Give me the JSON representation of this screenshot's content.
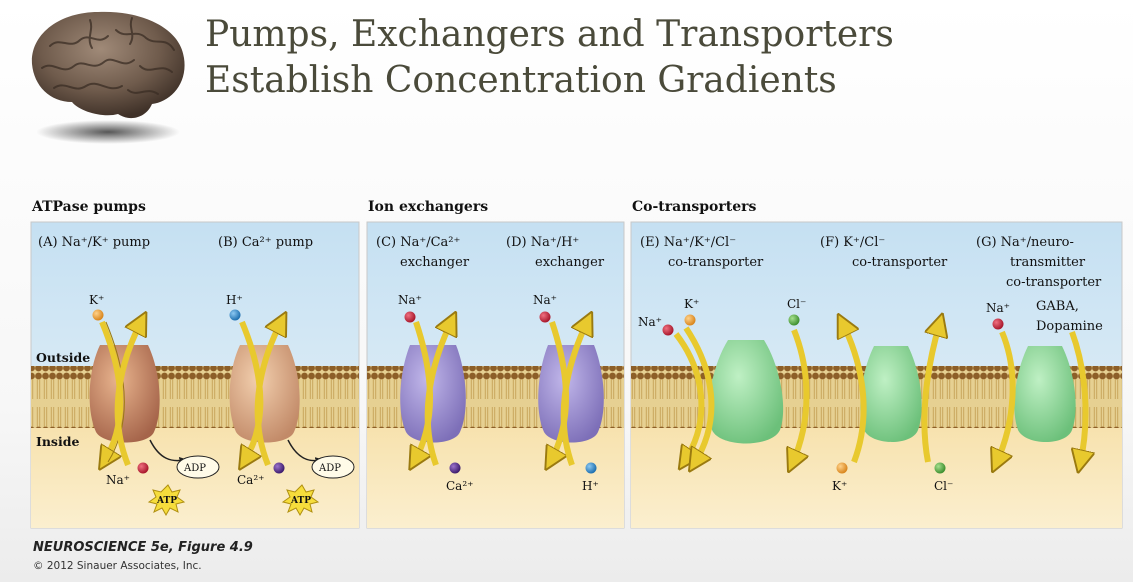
{
  "title": {
    "line1": "Pumps, Exchangers and Transporters",
    "line2": "Establish Concentration Gradients"
  },
  "sections": {
    "atpase": "ATPase pumps",
    "exchangers": "Ion exchangers",
    "cotransporters": "Co-transporters"
  },
  "membrane_labels": {
    "outside": "Outside",
    "inside": "Inside"
  },
  "panels": {
    "a": {
      "title": "(A) Na⁺/K⁺ pump",
      "ions": {
        "k": "K⁺",
        "na": "Na⁺",
        "adp": "ADP",
        "atp": "ATP"
      }
    },
    "b": {
      "title": "(B) Ca²⁺ pump",
      "ions": {
        "h": "H⁺",
        "ca": "Ca²⁺",
        "adp": "ADP",
        "atp": "ATP"
      }
    },
    "c": {
      "title_line1": "(C) Na⁺/Ca²⁺",
      "title_line2": "exchanger",
      "ions": {
        "na": "Na⁺",
        "ca": "Ca²⁺"
      }
    },
    "d": {
      "title_line1": "(D) Na⁺/H⁺",
      "title_line2": "exchanger",
      "ions": {
        "na": "Na⁺",
        "h": "H⁺"
      }
    },
    "e": {
      "title_line1": "(E) Na⁺/K⁺/Cl⁻",
      "title_line2": "co-transporter",
      "ions": {
        "na": "Na⁺",
        "k": "K⁺",
        "cl": "Cl⁻"
      }
    },
    "f": {
      "title_line1": "(F) K⁺/Cl⁻",
      "title_line2": "co-transporter",
      "ions": {
        "k": "K⁺",
        "cl": "Cl⁻"
      }
    },
    "g": {
      "title_line1": "(G) Na⁺/neuro-",
      "title_line2": "transmitter",
      "title_line3": "co-transporter",
      "ions": {
        "na": "Na⁺",
        "gaba": "GABA,",
        "dopamine": "Dopamine"
      }
    }
  },
  "caption": {
    "book": "NEUROSCIENCE 5e, Figure 4.9",
    "copyright": "© 2012 Sinauer Associates, Inc."
  },
  "colors": {
    "outside_top": "#cfe6f4",
    "outside_bottom": "#eaf4f9",
    "inside": "#f8e7b8",
    "lipid_head": "#9a6a2e",
    "lipid_tail": "#e0c88a",
    "atpase_protein": "#c9906b",
    "exchanger_protein": "#9c8fcf",
    "cotransporter_protein": "#8fd39a",
    "arrow": "#f2d44a",
    "ion_k": "#e9a23b",
    "ion_na": "#c42a3d",
    "ion_h": "#3a8fd0",
    "ion_ca": "#5a2f8f",
    "ion_cl": "#5fb34d"
  },
  "icons": [
    "brain-icon",
    "atp-burst-icon",
    "adp-ellipse-icon"
  ]
}
